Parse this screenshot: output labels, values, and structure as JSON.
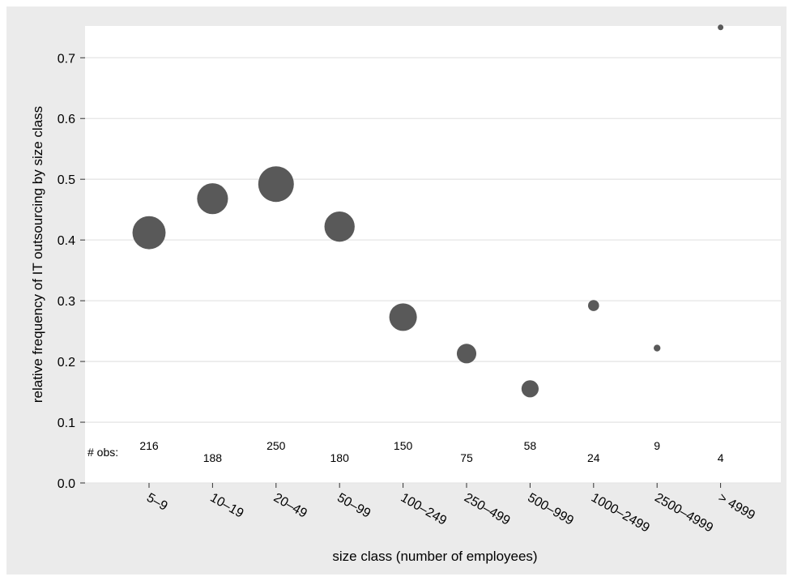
{
  "chart_data": {
    "type": "scatter",
    "xlabel": "size class (number of employees)",
    "ylabel": "relative frequency of IT outsourcing by size class",
    "categories": [
      "5–9",
      "10–19",
      "20–49",
      "50–99",
      "100–249",
      "250–499",
      "500–999",
      "1000–2499",
      "2500–4999",
      "> 4999"
    ],
    "values": [
      0.412,
      0.468,
      0.492,
      0.422,
      0.273,
      0.213,
      0.155,
      0.292,
      0.222,
      0.75
    ],
    "obs": [
      216,
      188,
      250,
      180,
      150,
      75,
      58,
      24,
      9,
      4
    ],
    "obs_label": "# obs:",
    "ylim": [
      0,
      0.75
    ],
    "yticks": [
      "0.0",
      "0.1",
      "0.2",
      "0.3",
      "0.4",
      "0.5",
      "0.6",
      "0.7"
    ],
    "point_size_encodes": "# obs",
    "grid": true,
    "legend": "none",
    "colors": {
      "panel": "#ffffff",
      "background": "#ebebeb",
      "point": "#595959",
      "grid": "#e5e5e5"
    }
  }
}
